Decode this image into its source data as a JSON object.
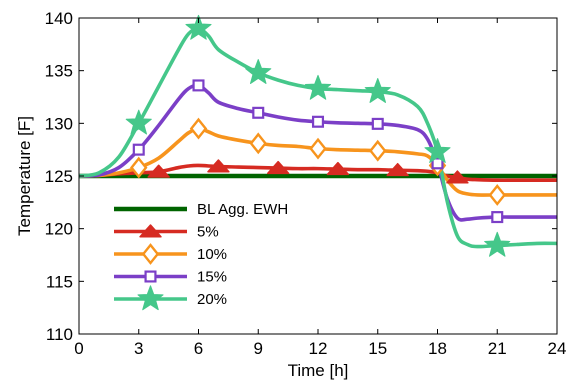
{
  "chart_data": {
    "type": "line",
    "xlabel": "Time [h]",
    "ylabel": "Temperature [F]",
    "xlim": [
      0,
      24
    ],
    "ylim": [
      110,
      140
    ],
    "xticks": [
      0,
      3,
      6,
      9,
      12,
      15,
      18,
      21,
      24
    ],
    "yticks": [
      110,
      115,
      120,
      125,
      130,
      135,
      140
    ],
    "grid": false,
    "legend_position": "lower-left",
    "series": [
      {
        "name": "BL Agg. EWH",
        "color": "#006400",
        "marker": "none",
        "x": [
          0,
          24
        ],
        "y": [
          125,
          125
        ]
      },
      {
        "name": "5%",
        "color": "#d62b22",
        "marker": "triangle",
        "x": [
          0,
          1,
          2,
          3,
          4,
          5,
          5.5,
          6,
          7,
          8,
          9,
          10,
          11,
          12,
          13,
          14,
          15,
          16,
          17,
          17.5,
          18,
          18.5,
          19,
          19.5,
          20,
          21,
          22,
          23,
          24
        ],
        "y": [
          125,
          125.05,
          125.2,
          125.3,
          125.4,
          125.8,
          125.95,
          126,
          125.9,
          125.85,
          125.8,
          125.75,
          125.7,
          125.7,
          125.65,
          125.6,
          125.6,
          125.55,
          125.5,
          125.45,
          125.3,
          125.0,
          124.85,
          124.7,
          124.65,
          124.6,
          124.6,
          124.6,
          124.6
        ],
        "marker_x": [
          4,
          7,
          10,
          13,
          16,
          19
        ]
      },
      {
        "name": "10%",
        "color": "#f7941d",
        "marker": "diamond",
        "x": [
          0,
          1,
          2,
          3,
          4,
          5,
          5.5,
          6,
          6.5,
          7,
          8,
          9,
          10,
          11,
          12,
          13,
          14,
          15,
          16,
          17,
          17.5,
          18,
          18.5,
          19,
          19.5,
          20,
          21,
          22,
          23,
          24
        ],
        "y": [
          125,
          125.05,
          125.3,
          125.8,
          126.7,
          128.3,
          129.1,
          129.5,
          129.2,
          128.8,
          128.4,
          128.1,
          127.9,
          127.8,
          127.6,
          127.5,
          127.45,
          127.4,
          127.3,
          127.1,
          126.9,
          126.0,
          124.6,
          123.6,
          123.3,
          123.2,
          123.2,
          123.2,
          123.2,
          123.2
        ],
        "marker_x": [
          3,
          6,
          9,
          12,
          15,
          18,
          21
        ]
      },
      {
        "name": "15%",
        "color": "#7b3fc7",
        "marker": "square",
        "x": [
          0,
          1,
          2,
          3,
          4,
          5,
          5.5,
          6,
          6.5,
          7,
          8,
          9,
          10,
          11,
          12,
          13,
          14,
          15,
          16,
          17,
          17.5,
          18,
          18.5,
          19,
          19.5,
          20,
          21,
          22,
          23,
          24
        ],
        "y": [
          125,
          125.1,
          125.8,
          127.5,
          129.8,
          132.3,
          133.3,
          133.6,
          132.9,
          132.0,
          131.4,
          131.0,
          130.6,
          130.3,
          130.15,
          130.05,
          130.0,
          129.95,
          129.8,
          129.4,
          128.5,
          126.2,
          122.8,
          121.0,
          120.9,
          121.0,
          121.1,
          121.1,
          121.1,
          121.1
        ],
        "marker_x": [
          3,
          6,
          9,
          12,
          15,
          18,
          21
        ]
      },
      {
        "name": "20%",
        "color": "#45c78a",
        "marker": "star",
        "x": [
          0,
          1,
          2,
          3,
          4,
          5,
          5.5,
          6,
          6.5,
          7,
          8,
          9,
          10,
          11,
          12,
          13,
          14,
          15,
          16,
          17,
          17.5,
          18,
          18.5,
          19,
          19.5,
          20,
          21,
          22,
          23,
          24
        ],
        "y": [
          125,
          125.3,
          126.8,
          130.0,
          133.5,
          137.0,
          138.5,
          139.0,
          138.3,
          137.0,
          135.8,
          134.8,
          134.1,
          133.6,
          133.3,
          133.2,
          133.1,
          133.0,
          132.7,
          131.6,
          130.0,
          127.3,
          122.5,
          119.3,
          118.5,
          118.3,
          118.4,
          118.5,
          118.6,
          118.6
        ],
        "marker_x": [
          3,
          6,
          9,
          12,
          15,
          18,
          21
        ]
      }
    ]
  }
}
